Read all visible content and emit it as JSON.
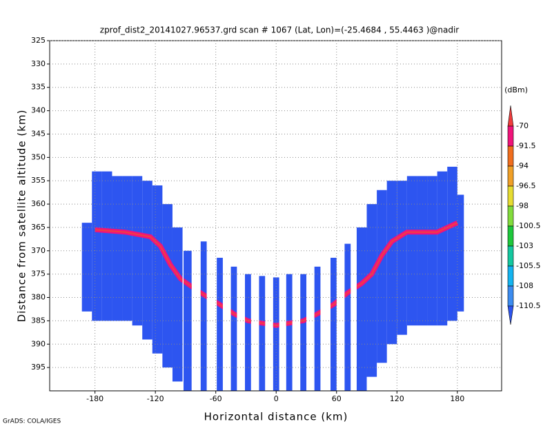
{
  "chart_data": {
    "type": "profile",
    "title": "zprof_dist2_20141027.96537.grd  scan # 1067  (Lat, Lon)=(-25.4684 , 55.4463 )@nadir",
    "x_label": "Horizontal distance (km)",
    "y_label": "Distance from satellite altitude (km)",
    "footer": "GrADS: COLA/IGES",
    "xlim": [
      -225,
      224
    ],
    "ylim": [
      325,
      400
    ],
    "y_reversed": true,
    "xticks": [
      -180,
      -120,
      -60,
      0,
      60,
      120,
      180
    ],
    "yticks": [
      325,
      330,
      335,
      340,
      345,
      350,
      355,
      360,
      365,
      370,
      375,
      380,
      385,
      390,
      395
    ],
    "grid": true,
    "columns": {
      "color": "#2d55f0",
      "x": [
        -188,
        -178,
        -168,
        -158,
        -148,
        -138,
        -128,
        -118,
        -108,
        -98,
        -88,
        -72,
        -56,
        -42,
        -28,
        -14,
        0,
        13,
        27,
        41,
        57,
        71,
        85,
        95,
        105,
        115,
        125,
        135,
        145,
        155,
        165,
        175,
        183
      ],
      "width": [
        10,
        10,
        10,
        10,
        10,
        10,
        10,
        10,
        10,
        10,
        8,
        6,
        6,
        6,
        6,
        6,
        6,
        6,
        6,
        6,
        6,
        6,
        10,
        10,
        10,
        10,
        10,
        10,
        10,
        10,
        10,
        10,
        7
      ],
      "top": [
        364,
        353,
        353,
        354,
        354,
        354,
        355,
        356,
        360,
        365,
        370,
        368,
        371.5,
        373.4,
        375,
        375.4,
        375.7,
        375,
        375,
        373.4,
        371.5,
        368.5,
        365,
        360,
        357,
        355,
        355,
        354,
        354,
        354,
        353,
        352,
        358
      ],
      "bottom": [
        383,
        385,
        385,
        385,
        385,
        386,
        389,
        392,
        395,
        398,
        400,
        400,
        400,
        400,
        400,
        400,
        400,
        400,
        400,
        400,
        400,
        400,
        400,
        397,
        394,
        390,
        388,
        386,
        386,
        386,
        386,
        385,
        383
      ]
    },
    "surface": {
      "color": "#f0147a",
      "core_color": "#f04040",
      "x": [
        -180,
        -150,
        -125,
        -115,
        -105,
        -95,
        -75,
        -56,
        -42,
        -28,
        -14,
        0,
        13,
        27,
        41,
        57,
        71,
        85,
        95,
        105,
        115,
        130,
        160,
        180
      ],
      "y": [
        365.5,
        366,
        367,
        369,
        373,
        376,
        379,
        381.5,
        383.5,
        385,
        385.5,
        386,
        385.5,
        385,
        383.5,
        381.5,
        379,
        377,
        375,
        371,
        368,
        366,
        366,
        364
      ]
    },
    "colorbar": {
      "title": "(dBm)",
      "levels": [
        -70,
        -91.5,
        -94,
        -96.5,
        -98,
        -100.5,
        -103,
        -105.5,
        -108,
        -110.5
      ],
      "colors": [
        "#f03c3c",
        "#f0147a",
        "#f06e1e",
        "#f0a028",
        "#e6dc32",
        "#82dc3c",
        "#1ec83c",
        "#14c8a0",
        "#14b4f0",
        "#3c8cf0",
        "#2d55f0"
      ]
    }
  }
}
